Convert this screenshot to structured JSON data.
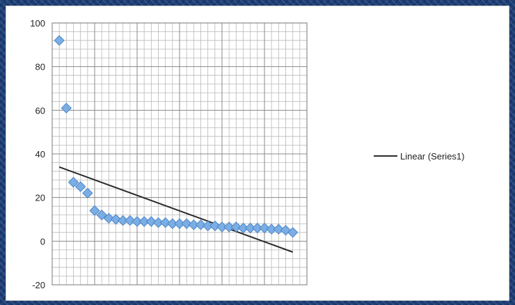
{
  "chart_data": {
    "type": "scatter",
    "title": "",
    "xlabel": "",
    "ylabel": "",
    "xlim": [
      0,
      36
    ],
    "ylim": [
      -20,
      100
    ],
    "y_ticks": [
      "-20",
      "0",
      "20",
      "40",
      "60",
      "80",
      "100"
    ],
    "grid": true,
    "legend_position": "right",
    "series": [
      {
        "marker": "diamond",
        "color": "#7aaee4",
        "x": [
          1,
          2,
          3,
          4,
          5,
          6,
          7,
          8,
          9,
          10,
          11,
          12,
          13,
          14,
          15,
          16,
          17,
          18,
          19,
          20,
          21,
          22,
          23,
          24,
          25,
          26,
          27,
          28,
          29,
          30,
          31,
          32,
          33,
          34
        ],
        "y": [
          92,
          61,
          27,
          25,
          22,
          14,
          12,
          10.5,
          10,
          9.5,
          9.5,
          9,
          9,
          9,
          8.5,
          8.5,
          8,
          8,
          8,
          7.5,
          7.5,
          7,
          7,
          6.5,
          6.5,
          6.5,
          6,
          6,
          6,
          6,
          5.5,
          5.5,
          5,
          4
        ]
      }
    ],
    "trendline": {
      "name": "Linear (Series1)",
      "color": "#2b2b2b",
      "x": [
        1,
        34
      ],
      "y": [
        34,
        -5
      ]
    }
  }
}
